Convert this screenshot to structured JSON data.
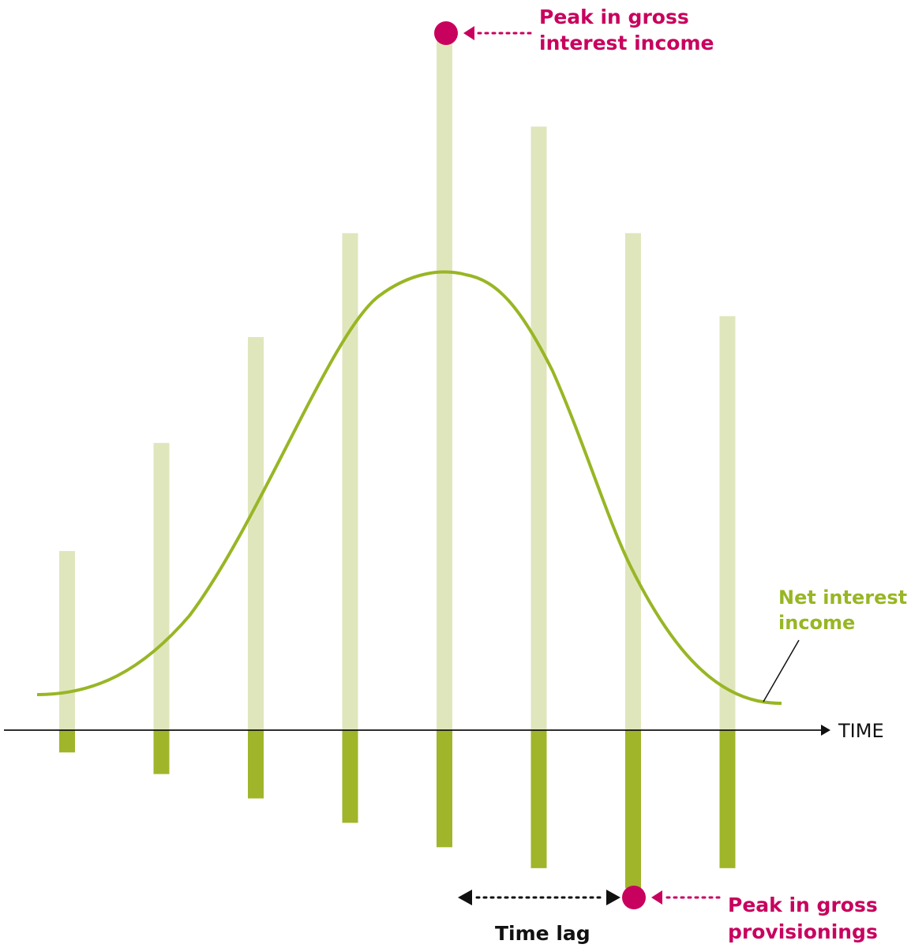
{
  "chart_data": {
    "type": "bar",
    "title": "",
    "xlabel": "TIME",
    "ylabel": "",
    "series": [
      {
        "name": "",
        "role": "gross_interest_income",
        "values": [
          25.7,
          41.2,
          56.4,
          71.3,
          100,
          86.6,
          71.3,
          59.4
        ],
        "color": "#e0e6bc"
      },
      {
        "name": "",
        "role": "gross_provisionings",
        "values": [
          -3.2,
          -6.3,
          -9.8,
          -13.3,
          -16.8,
          -19.8,
          -22.7,
          -19.8
        ],
        "color": "#a0b52a"
      },
      {
        "name": "Net interest income",
        "role": "net_interest_income",
        "type": "line",
        "color": "#98b625"
      }
    ],
    "ylim": [
      -25,
      100
    ],
    "grid": false,
    "legend": "none"
  },
  "annotations": {
    "peak_income": [
      "Peak in gross",
      "interest income"
    ],
    "peak_provisionings": [
      "Peak in gross",
      "provisionings"
    ],
    "net_interest_income": [
      "Net interest",
      "income"
    ],
    "time_lag": "Time lag",
    "axis_label": "TIME"
  },
  "colors": {
    "accent_pink": "#c8005e",
    "line_green": "#98b625",
    "bar_light": "#e0e6bc",
    "bar_dark": "#a0b52a",
    "axis": "#111111"
  }
}
